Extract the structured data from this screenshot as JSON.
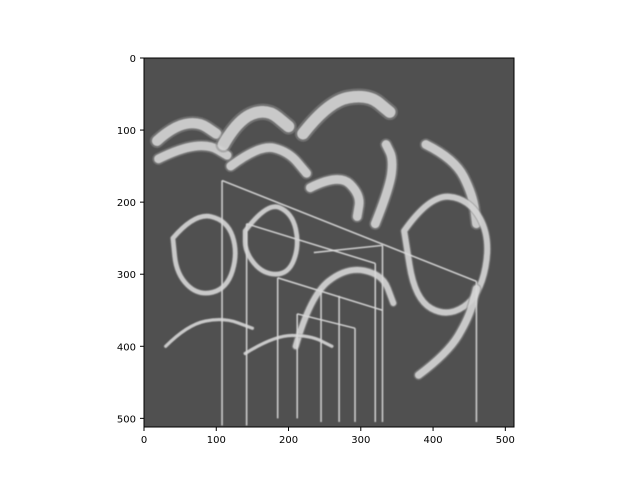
{
  "chart_data": {
    "type": "heatmap",
    "title": "",
    "xlabel": "",
    "ylabel": "",
    "xlim": [
      0,
      512
    ],
    "ylim": [
      512,
      0
    ],
    "x_ticks": [
      0,
      100,
      200,
      300,
      400,
      500
    ],
    "y_ticks": [
      0,
      100,
      200,
      300,
      400,
      500
    ],
    "colormap": "gray",
    "background_color": "#505050",
    "stroke_color": "#d9d9d9",
    "grid": false,
    "strokes": [
      {
        "name": "arc-top-left",
        "points": [
          [
            18,
            115
          ],
          [
            40,
            95
          ],
          [
            75,
            88
          ],
          [
            100,
            105
          ]
        ],
        "width": 14
      },
      {
        "name": "arc-top-left-2",
        "points": [
          [
            20,
            140
          ],
          [
            50,
            125
          ],
          [
            90,
            120
          ],
          [
            115,
            135
          ]
        ],
        "width": 12
      },
      {
        "name": "arc-top-center",
        "points": [
          [
            110,
            120
          ],
          [
            130,
            85
          ],
          [
            170,
            70
          ],
          [
            200,
            95
          ]
        ],
        "width": 16
      },
      {
        "name": "arc-top-center-2",
        "points": [
          [
            120,
            150
          ],
          [
            160,
            120
          ],
          [
            200,
            130
          ],
          [
            225,
            160
          ]
        ],
        "width": 12
      },
      {
        "name": "arc-top-right",
        "points": [
          [
            220,
            105
          ],
          [
            255,
            60
          ],
          [
            310,
            50
          ],
          [
            340,
            75
          ]
        ],
        "width": 16
      },
      {
        "name": "arc-right-hook",
        "points": [
          [
            320,
            230
          ],
          [
            340,
            180
          ],
          [
            345,
            140
          ],
          [
            335,
            120
          ]
        ],
        "width": 12
      },
      {
        "name": "arc-mid-right",
        "points": [
          [
            230,
            180
          ],
          [
            270,
            160
          ],
          [
            300,
            190
          ],
          [
            295,
            220
          ]
        ],
        "width": 12
      },
      {
        "name": "arc-far-right",
        "points": [
          [
            390,
            120
          ],
          [
            430,
            140
          ],
          [
            455,
            190
          ],
          [
            460,
            230
          ]
        ],
        "width": 12
      },
      {
        "name": "ring-left",
        "points": [
          [
            40,
            250
          ],
          [
            70,
            215
          ],
          [
            115,
            225
          ],
          [
            130,
            270
          ],
          [
            115,
            320
          ],
          [
            75,
            330
          ],
          [
            45,
            300
          ],
          [
            40,
            250
          ]
        ],
        "width": 6
      },
      {
        "name": "ring-center",
        "points": [
          [
            140,
            240
          ],
          [
            170,
            200
          ],
          [
            205,
            215
          ],
          [
            215,
            260
          ],
          [
            200,
            300
          ],
          [
            165,
            300
          ],
          [
            140,
            270
          ],
          [
            140,
            240
          ]
        ],
        "width": 6
      },
      {
        "name": "ring-right",
        "points": [
          [
            360,
            240
          ],
          [
            395,
            190
          ],
          [
            450,
            195
          ],
          [
            480,
            250
          ],
          [
            465,
            330
          ],
          [
            420,
            360
          ],
          [
            375,
            335
          ],
          [
            360,
            240
          ]
        ],
        "width": 8
      },
      {
        "name": "arc-lower-center",
        "points": [
          [
            210,
            400
          ],
          [
            230,
            330
          ],
          [
            280,
            290
          ],
          [
            330,
            300
          ],
          [
            345,
            340
          ]
        ],
        "width": 8
      },
      {
        "name": "arc-lower-right",
        "points": [
          [
            380,
            440
          ],
          [
            420,
            410
          ],
          [
            450,
            360
          ],
          [
            460,
            320
          ]
        ],
        "width": 10
      },
      {
        "name": "curve-bottom-left",
        "points": [
          [
            30,
            400
          ],
          [
            60,
            370
          ],
          [
            110,
            360
          ],
          [
            150,
            375
          ]
        ],
        "width": 4
      },
      {
        "name": "curve-bottom-mid",
        "points": [
          [
            140,
            410
          ],
          [
            180,
            385
          ],
          [
            230,
            385
          ],
          [
            260,
            400
          ]
        ],
        "width": 4
      }
    ],
    "lines": [
      {
        "points": [
          [
            108,
            170
          ],
          [
            108,
            510
          ]
        ]
      },
      {
        "points": [
          [
            108,
            170
          ],
          [
            460,
            310
          ]
        ]
      },
      {
        "points": [
          [
            142,
            230
          ],
          [
            142,
            510
          ]
        ]
      },
      {
        "points": [
          [
            142,
            230
          ],
          [
            320,
            285
          ]
        ]
      },
      {
        "points": [
          [
            185,
            305
          ],
          [
            185,
            500
          ]
        ]
      },
      {
        "points": [
          [
            185,
            305
          ],
          [
            330,
            350
          ]
        ]
      },
      {
        "points": [
          [
            212,
            355
          ],
          [
            212,
            500
          ]
        ]
      },
      {
        "points": [
          [
            212,
            355
          ],
          [
            292,
            375
          ]
        ]
      },
      {
        "points": [
          [
            292,
            375
          ],
          [
            292,
            505
          ]
        ]
      },
      {
        "points": [
          [
            320,
            285
          ],
          [
            320,
            505
          ]
        ]
      },
      {
        "points": [
          [
            460,
            310
          ],
          [
            460,
            505
          ]
        ]
      },
      {
        "points": [
          [
            245,
            320
          ],
          [
            245,
            505
          ]
        ]
      },
      {
        "points": [
          [
            270,
            330
          ],
          [
            270,
            505
          ]
        ]
      },
      {
        "points": [
          [
            235,
            270
          ],
          [
            330,
            260
          ]
        ]
      },
      {
        "points": [
          [
            330,
            260
          ],
          [
            330,
            505
          ]
        ]
      }
    ]
  }
}
